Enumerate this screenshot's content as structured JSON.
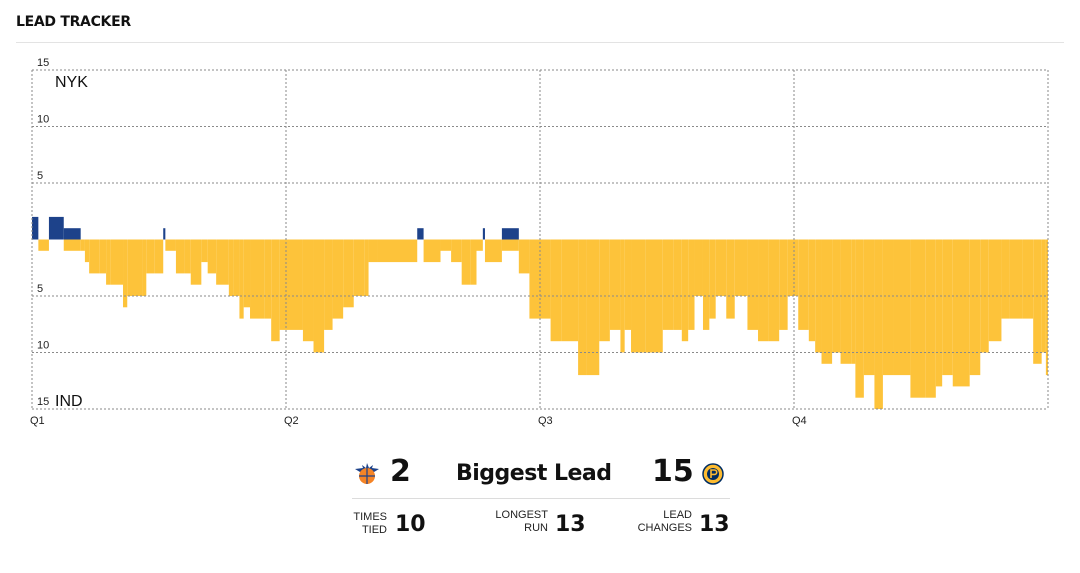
{
  "header": {
    "title": "LEAD TRACKER"
  },
  "chart_data": {
    "type": "bar",
    "title": "",
    "teams": {
      "top": "NYK",
      "bottom": "IND"
    },
    "colors": {
      "NYK": "#1d428a",
      "IND": "#fdc33a"
    },
    "y_tick_labels": [
      "15",
      "10",
      "5",
      "",
      "5",
      "10",
      "15"
    ],
    "ylim": [
      -15,
      15
    ],
    "x_tick_labels": [
      "Q1",
      "Q2",
      "Q3",
      "Q4"
    ],
    "x_unit": "game minutes",
    "xlim": [
      0,
      48
    ],
    "grid": true,
    "series": [
      {
        "name": "NYK",
        "points": [
          [
            0.0,
            2
          ],
          [
            0.7,
            0
          ],
          [
            0.8,
            2
          ],
          [
            1.5,
            1
          ],
          [
            6.2,
            1
          ],
          [
            18.2,
            1
          ],
          [
            21.3,
            1
          ],
          [
            22.2,
            1
          ]
        ]
      },
      {
        "name": "IND",
        "points": [
          [
            0.3,
            -1
          ],
          [
            1.5,
            -1
          ],
          [
            2.3,
            -1
          ],
          [
            2.5,
            -2
          ],
          [
            2.7,
            -3
          ],
          [
            3.2,
            -3
          ],
          [
            3.5,
            -4
          ],
          [
            3.7,
            -4
          ],
          [
            4.3,
            -6
          ],
          [
            4.5,
            -5
          ],
          [
            5.2,
            -5
          ],
          [
            5.4,
            -3
          ],
          [
            5.8,
            -3
          ],
          [
            6.3,
            -1
          ],
          [
            6.8,
            -3
          ],
          [
            7.2,
            -3
          ],
          [
            7.5,
            -4
          ],
          [
            8.0,
            -2
          ],
          [
            8.3,
            -3
          ],
          [
            8.7,
            -4
          ],
          [
            9.0,
            -4
          ],
          [
            9.3,
            -5
          ],
          [
            9.5,
            -5
          ],
          [
            9.8,
            -7
          ],
          [
            10.0,
            -6
          ],
          [
            10.3,
            -7
          ],
          [
            11.0,
            -7
          ],
          [
            11.3,
            -9
          ],
          [
            11.7,
            -8
          ],
          [
            12.0,
            -8
          ],
          [
            12.8,
            -9
          ],
          [
            13.3,
            -10
          ],
          [
            13.8,
            -8
          ],
          [
            14.2,
            -7
          ],
          [
            14.7,
            -6
          ],
          [
            15.2,
            -5
          ],
          [
            15.7,
            -5
          ],
          [
            15.9,
            -2
          ],
          [
            16.3,
            -2
          ],
          [
            18.5,
            -2
          ],
          [
            19.3,
            -1
          ],
          [
            19.8,
            -2
          ],
          [
            20.3,
            -4
          ],
          [
            20.7,
            -4
          ],
          [
            21.0,
            -1
          ],
          [
            21.4,
            -2
          ],
          [
            22.2,
            -1
          ],
          [
            23.0,
            -3
          ],
          [
            23.5,
            -7
          ],
          [
            24.5,
            -9
          ],
          [
            25.0,
            -9
          ],
          [
            25.8,
            -12
          ],
          [
            26.2,
            -12
          ],
          [
            26.8,
            -9
          ],
          [
            27.3,
            -8
          ],
          [
            27.8,
            -10
          ],
          [
            28.0,
            -8
          ],
          [
            28.3,
            -10
          ],
          [
            29.0,
            -10
          ],
          [
            29.8,
            -8
          ],
          [
            30.3,
            -8
          ],
          [
            30.7,
            -9
          ],
          [
            31.0,
            -8
          ],
          [
            31.3,
            -5
          ],
          [
            31.7,
            -8
          ],
          [
            32.0,
            -7
          ],
          [
            32.3,
            -5
          ],
          [
            32.8,
            -7
          ],
          [
            33.2,
            -5
          ],
          [
            33.8,
            -8
          ],
          [
            34.3,
            -9
          ],
          [
            34.8,
            -9
          ],
          [
            35.3,
            -8
          ],
          [
            35.7,
            -5
          ],
          [
            36.2,
            -8
          ],
          [
            36.7,
            -9
          ],
          [
            37.0,
            -10
          ],
          [
            37.3,
            -11
          ],
          [
            37.8,
            -10
          ],
          [
            38.2,
            -11
          ],
          [
            38.7,
            -11
          ],
          [
            38.9,
            -14
          ],
          [
            39.3,
            -12
          ],
          [
            39.8,
            -15
          ],
          [
            40.2,
            -12
          ],
          [
            40.7,
            -12
          ],
          [
            41.5,
            -14
          ],
          [
            42.2,
            -14
          ],
          [
            42.7,
            -13
          ],
          [
            43.0,
            -12
          ],
          [
            43.5,
            -13
          ],
          [
            44.3,
            -12
          ],
          [
            44.8,
            -10
          ],
          [
            45.2,
            -9
          ],
          [
            45.8,
            -7
          ],
          [
            46.2,
            -7
          ],
          [
            46.8,
            -7
          ],
          [
            47.3,
            -11
          ],
          [
            47.7,
            -10
          ],
          [
            47.9,
            -12
          ]
        ]
      }
    ]
  },
  "stats": {
    "biggest_lead": {
      "label": "Biggest Lead",
      "nyk": "2",
      "ind": "15"
    },
    "times_tied": {
      "label_1": "TIMES",
      "label_2": "TIED",
      "value": "10"
    },
    "longest_run": {
      "label_1": "LONGEST",
      "label_2": "RUN",
      "value": "13"
    },
    "lead_changes": {
      "label_1": "LEAD",
      "label_2": "CHANGES",
      "value": "13"
    }
  }
}
